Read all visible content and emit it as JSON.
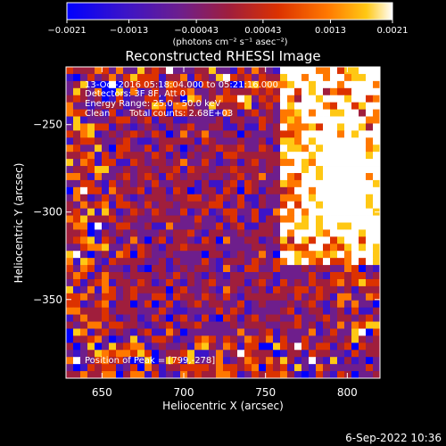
{
  "chart_data": {
    "type": "heatmap",
    "title": "Reconstructed RHESSI Image",
    "xlabel": "Heliocentric X (arcsec)",
    "ylabel": "Heliocentric Y (arcsec)",
    "xlim": [
      628,
      820
    ],
    "ylim": [
      -395,
      -217
    ],
    "x_ticks": [
      650,
      700,
      750,
      800
    ],
    "x_tick_labels": [
      "650",
      "700",
      "750",
      "800"
    ],
    "y_ticks": [
      -250,
      -300,
      -350
    ],
    "y_tick_labels": [
      "−250",
      "−300",
      "−350"
    ],
    "colorbar": {
      "range": [
        -0.0021,
        0.0021
      ],
      "ticks": [
        -0.0021,
        -0.0013,
        -0.00043,
        0.00043,
        0.0013,
        0.0021
      ],
      "tick_labels": [
        "−0.0021",
        "−0.0013",
        "−0.00043",
        "0.00043",
        "0.0013",
        "0.0021"
      ],
      "unit_label": "(photons cm⁻² s⁻¹ asec⁻²)",
      "colors": [
        "#0000ff",
        "#3c14c8",
        "#6e1e8c",
        "#a01e3c",
        "#dc3200",
        "#ff7800",
        "#ffc814",
        "#ffffff"
      ]
    },
    "peak": [
      799,
      -278
    ],
    "peak_region_x": [
      758,
      820
    ],
    "peak_region_y": [
      -330,
      -217
    ]
  },
  "annotations": {
    "time_range": "13-Oct-2016 05:18:04.000 to 05:21:16.000",
    "detectors": "Detectors: 3F 8F, Att 0",
    "energy_range": "Energy Range: 25.0 - 50.0 keV",
    "clean": "Clean",
    "total_counts": "Total counts: 2.68E+03",
    "peak_position": "Position of Peak = [799,-278]"
  },
  "footer_date": "6-Sep-2022 10:36"
}
